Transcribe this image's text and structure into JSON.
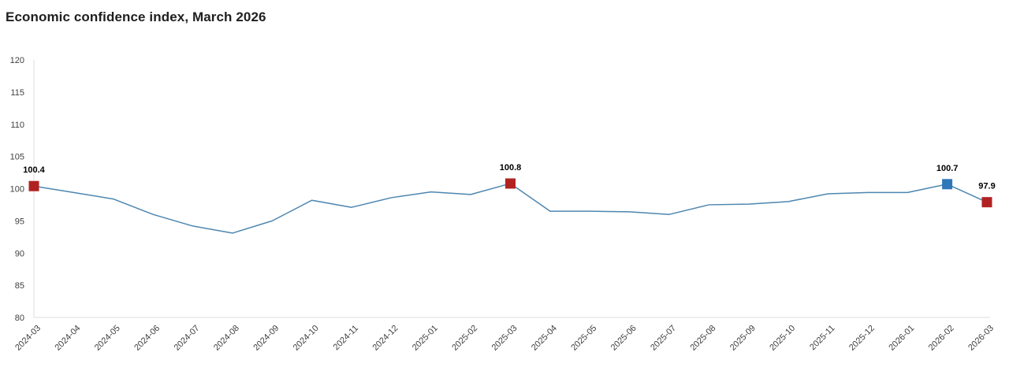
{
  "chart_data": {
    "type": "line",
    "title": "Economic confidence index, March 2026",
    "xlabel": "",
    "ylabel": "",
    "ylim": [
      80,
      120
    ],
    "yticks": [
      80,
      85,
      90,
      95,
      100,
      105,
      110,
      115,
      120
    ],
    "grid": false,
    "legend": "none",
    "x": [
      "2024-03",
      "2024-04",
      "2024-05",
      "2024-06",
      "2024-07",
      "2024-08",
      "2024-09",
      "2024-10",
      "2024-11",
      "2024-12",
      "2025-01",
      "2025-02",
      "2025-03",
      "2025-04",
      "2025-05",
      "2025-06",
      "2025-07",
      "2025-08",
      "2025-09",
      "2025-10",
      "2025-11",
      "2025-12",
      "2026-01",
      "2026-02",
      "2026-03"
    ],
    "series": [
      {
        "name": "Economic confidence index",
        "values": [
          100.4,
          99.4,
          98.4,
          96.0,
          94.2,
          93.1,
          95.0,
          98.2,
          97.1,
          98.6,
          99.5,
          99.1,
          100.8,
          96.5,
          96.5,
          96.4,
          96.0,
          97.5,
          97.6,
          98.0,
          99.2,
          99.4,
          99.4,
          100.7,
          97.9
        ]
      }
    ],
    "labeled_points": [
      {
        "month": "2024-03",
        "value": 100.4,
        "label": "100.4",
        "color": "#b22222"
      },
      {
        "month": "2025-03",
        "value": 100.8,
        "label": "100.8",
        "color": "#b22222"
      },
      {
        "month": "2026-02",
        "value": 100.7,
        "label": "100.7",
        "color": "#2e77b8"
      },
      {
        "month": "2026-03",
        "value": 97.9,
        "label": "97.9",
        "color": "#b22222"
      }
    ],
    "colors": {
      "line": "#4d86b0",
      "marker_red": "#b22222",
      "marker_blue": "#2e77b8",
      "axis": "#dddddd",
      "tick_text": "#404040",
      "label_text": "#000000",
      "title_text": "#1f1f1f"
    }
  }
}
